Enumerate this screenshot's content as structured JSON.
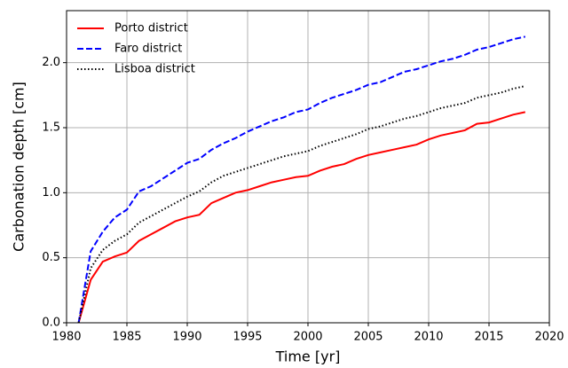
{
  "chart_data": {
    "type": "line",
    "xlabel": "Time [yr]",
    "ylabel": "Carbonation depth [cm]",
    "x": [
      1981,
      1982,
      1983,
      1984,
      1985,
      1986,
      1987,
      1988,
      1989,
      1990,
      1991,
      1992,
      1993,
      1994,
      1995,
      1996,
      1997,
      1998,
      1999,
      2000,
      2001,
      2002,
      2003,
      2004,
      2005,
      2006,
      2007,
      2008,
      2009,
      2010,
      2011,
      2012,
      2013,
      2014,
      2015,
      2016,
      2017,
      2018
    ],
    "series": [
      {
        "name": "Porto district",
        "color": "#ff0000",
        "linestyle": "solid",
        "values": [
          0,
          0.33,
          0.47,
          0.51,
          0.54,
          0.63,
          0.68,
          0.73,
          0.78,
          0.81,
          0.83,
          0.92,
          0.96,
          1.0,
          1.02,
          1.05,
          1.08,
          1.1,
          1.12,
          1.13,
          1.17,
          1.2,
          1.22,
          1.26,
          1.29,
          1.31,
          1.33,
          1.35,
          1.37,
          1.41,
          1.44,
          1.46,
          1.48,
          1.53,
          1.54,
          1.57,
          1.6,
          1.62
        ]
      },
      {
        "name": "Faro district",
        "color": "#0000ff",
        "linestyle": "dashed",
        "values": [
          0,
          0.55,
          0.7,
          0.81,
          0.87,
          1.01,
          1.05,
          1.11,
          1.17,
          1.23,
          1.26,
          1.33,
          1.38,
          1.42,
          1.47,
          1.51,
          1.55,
          1.58,
          1.62,
          1.64,
          1.69,
          1.73,
          1.76,
          1.79,
          1.83,
          1.85,
          1.89,
          1.93,
          1.95,
          1.98,
          2.01,
          2.03,
          2.06,
          2.1,
          2.12,
          2.15,
          2.18,
          2.2
        ]
      },
      {
        "name": "Lisboa district",
        "color": "#000000",
        "linestyle": "dotted",
        "values": [
          0,
          0.42,
          0.56,
          0.63,
          0.68,
          0.77,
          0.82,
          0.87,
          0.92,
          0.97,
          1.01,
          1.08,
          1.13,
          1.16,
          1.19,
          1.22,
          1.25,
          1.28,
          1.3,
          1.32,
          1.36,
          1.39,
          1.42,
          1.45,
          1.49,
          1.51,
          1.54,
          1.57,
          1.59,
          1.62,
          1.65,
          1.67,
          1.69,
          1.73,
          1.75,
          1.77,
          1.8,
          1.82
        ]
      }
    ],
    "xlim": [
      1980,
      2020
    ],
    "xticks": [
      1980,
      1985,
      1990,
      1995,
      2000,
      2005,
      2010,
      2015,
      2020
    ],
    "ylim": [
      0,
      2.4
    ],
    "yticks": [
      {
        "value": 0,
        "label": "0.0"
      },
      0.5,
      {
        "value": 1,
        "label": "1.0"
      },
      1.5,
      {
        "value": 2,
        "label": "2.0"
      }
    ],
    "grid": true,
    "legend": "upper-left"
  }
}
